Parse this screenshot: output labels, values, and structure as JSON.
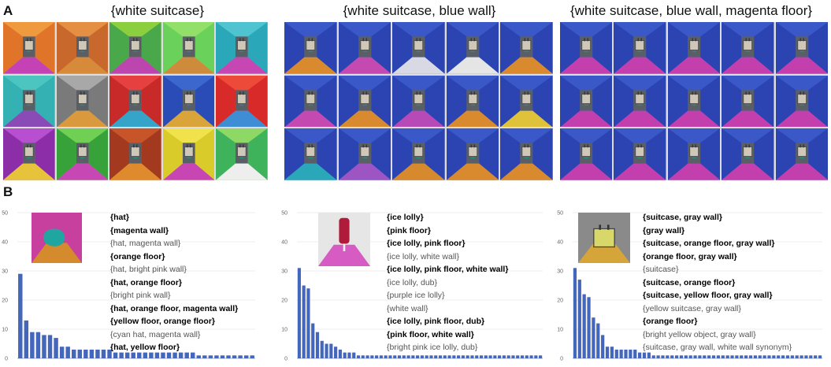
{
  "section_labels": {
    "a": "A",
    "b": "B"
  },
  "panel_a": {
    "groups": [
      {
        "title": "{white suitcase}",
        "rows": 3,
        "cols": 5,
        "tiles": [
          {
            "wall": "#e0752a",
            "wall2": "#f09a40",
            "floor": "#c442b6"
          },
          {
            "wall": "#c9682d",
            "wall2": "#e58f42",
            "floor": "#d78a3a"
          },
          {
            "wall": "#48a84a",
            "wall2": "#8ccf3e",
            "floor": "#bd45b0"
          },
          {
            "wall": "#6ad25b",
            "wall2": "#92e06a",
            "floor": "#cf8b3c"
          },
          {
            "wall": "#2aa7b8",
            "wall2": "#4fc4d0",
            "floor": "#c647b4"
          },
          {
            "wall": "#33b1b3",
            "wall2": "#4cc5c0",
            "floor": "#8b4bb6"
          },
          {
            "wall": "#7a7a7a",
            "wall2": "#a8a8a8",
            "floor": "#d9993c"
          },
          {
            "wall": "#c82a2a",
            "wall2": "#e64040",
            "floor": "#36a4c9"
          },
          {
            "wall": "#2a4cb6",
            "wall2": "#3c67cc",
            "floor": "#d9a53a"
          },
          {
            "wall": "#d92a2a",
            "wall2": "#ee4a3a",
            "floor": "#3f8ed5"
          },
          {
            "wall": "#8b2ea8",
            "wall2": "#b84ed0",
            "floor": "#e7c23b"
          },
          {
            "wall": "#38a23a",
            "wall2": "#6fd053",
            "floor": "#c747b4"
          },
          {
            "wall": "#a3391f",
            "wall2": "#c8552a",
            "floor": "#e08a2e"
          },
          {
            "wall": "#d9cc2a",
            "wall2": "#f0e24a",
            "floor": "#c846b3"
          },
          {
            "wall": "#3fb35c",
            "wall2": "#8ed966",
            "floor": "#eeeeee"
          }
        ]
      },
      {
        "title": "{white suitcase, blue  wall}",
        "rows": 3,
        "cols": 5,
        "tiles": [
          {
            "wall": "#2b44b2",
            "wall2": "#3a58c8",
            "floor": "#d98a2e"
          },
          {
            "wall": "#2b44b2",
            "wall2": "#3a58c8",
            "floor": "#c44ab2"
          },
          {
            "wall": "#2b44b2",
            "wall2": "#3a58c8",
            "floor": "#d9d9e6"
          },
          {
            "wall": "#2b44b2",
            "wall2": "#3a58c8",
            "floor": "#e5e5e5"
          },
          {
            "wall": "#2b44b2",
            "wall2": "#3a58c8",
            "floor": "#d98a2e"
          },
          {
            "wall": "#2b44b2",
            "wall2": "#3a58c8",
            "floor": "#c44ab2"
          },
          {
            "wall": "#2b44b2",
            "wall2": "#3a58c8",
            "floor": "#d98a2e"
          },
          {
            "wall": "#2b44b2",
            "wall2": "#3a58c8",
            "floor": "#b84ab8"
          },
          {
            "wall": "#2b44b2",
            "wall2": "#3a58c8",
            "floor": "#d98a2e"
          },
          {
            "wall": "#2b44b2",
            "wall2": "#3a58c8",
            "floor": "#e0c23a"
          },
          {
            "wall": "#2b44b2",
            "wall2": "#3a58c8",
            "floor": "#2aa7b8"
          },
          {
            "wall": "#2b44b2",
            "wall2": "#3a58c8",
            "floor": "#9c55c2"
          },
          {
            "wall": "#2b44b2",
            "wall2": "#3a58c8",
            "floor": "#d7892d"
          },
          {
            "wall": "#2b44b2",
            "wall2": "#3a58c8",
            "floor": "#d98a2e"
          },
          {
            "wall": "#2b44b2",
            "wall2": "#3a58c8",
            "floor": "#d98a2e"
          }
        ]
      },
      {
        "title": "{white suitcase, blue  wall, magenta  floor}",
        "rows": 3,
        "cols": 5,
        "tiles": [
          {
            "wall": "#2b44b2",
            "wall2": "#3a58c8",
            "floor": "#c43fae"
          },
          {
            "wall": "#2b44b2",
            "wall2": "#3a58c8",
            "floor": "#c43fae"
          },
          {
            "wall": "#2b44b2",
            "wall2": "#3a58c8",
            "floor": "#c43fae"
          },
          {
            "wall": "#2b44b2",
            "wall2": "#3a58c8",
            "floor": "#c43fae"
          },
          {
            "wall": "#2b44b2",
            "wall2": "#3a58c8",
            "floor": "#c43fae"
          },
          {
            "wall": "#2b44b2",
            "wall2": "#3a58c8",
            "floor": "#c43fae"
          },
          {
            "wall": "#2b44b2",
            "wall2": "#3a58c8",
            "floor": "#c43fae"
          },
          {
            "wall": "#2b44b2",
            "wall2": "#3a58c8",
            "floor": "#c43fae"
          },
          {
            "wall": "#2b44b2",
            "wall2": "#3a58c8",
            "floor": "#c43fae"
          },
          {
            "wall": "#2b44b2",
            "wall2": "#3a58c8",
            "floor": "#c43fae"
          },
          {
            "wall": "#2b44b2",
            "wall2": "#3a58c8",
            "floor": "#c43fae"
          },
          {
            "wall": "#2b44b2",
            "wall2": "#3a58c8",
            "floor": "#c43fae"
          },
          {
            "wall": "#2b44b2",
            "wall2": "#3a58c8",
            "floor": "#c43fae"
          },
          {
            "wall": "#2b44b2",
            "wall2": "#3a58c8",
            "floor": "#c43fae"
          },
          {
            "wall": "#2b44b2",
            "wall2": "#3a58c8",
            "floor": "#c43fae"
          }
        ]
      }
    ]
  },
  "panel_b": {
    "bar_color": "#4466bb",
    "hypotheses": [
      [
        {
          "text": "{hat}",
          "bold": true
        },
        {
          "text": "{magenta  wall}",
          "bold": true
        },
        {
          "text": "{hat, magenta  wall}",
          "bold": false
        },
        {
          "text": "{orange  floor}",
          "bold": true
        },
        {
          "text": "{hat, bright pink wall}",
          "bold": false
        },
        {
          "text": "{hat, orange  floor}",
          "bold": true
        },
        {
          "text": "{bright pink wall}",
          "bold": false
        },
        {
          "text": "{hat, orange  floor, magenta  wall}",
          "bold": true
        },
        {
          "text": "{yellow  floor, orange  floor}",
          "bold": true
        },
        {
          "text": "{cyan hat, magenta  wall}",
          "bold": false
        },
        {
          "text": "{hat, yellow  floor}",
          "bold": true
        }
      ],
      [
        {
          "text": "{ice lolly}",
          "bold": true
        },
        {
          "text": "{pink  floor}",
          "bold": true
        },
        {
          "text": "{ice  lolly, pink  floor}",
          "bold": true
        },
        {
          "text": "{ice lolly, white  wall}",
          "bold": false
        },
        {
          "text": "{ice  lolly, pink  floor, white  wall}",
          "bold": true
        },
        {
          "text": "{ice lolly, dub}",
          "bold": false
        },
        {
          "text": "{purple ice lolly}",
          "bold": false
        },
        {
          "text": "{white  wall}",
          "bold": false
        },
        {
          "text": "{ice  lolly, pink  floor, dub}",
          "bold": true
        },
        {
          "text": "{pink  floor, white  wall}",
          "bold": true
        },
        {
          "text": "{bright pink ice lolly, dub}",
          "bold": false
        }
      ],
      [
        {
          "text": "{suitcase, gray  wall}",
          "bold": true
        },
        {
          "text": "{gray  wall}",
          "bold": true
        },
        {
          "text": "{suitcase, orange  floor, gray  wall}",
          "bold": true
        },
        {
          "text": "{orange  floor, gray  wall}",
          "bold": true
        },
        {
          "text": "{suitcase}",
          "bold": false
        },
        {
          "text": "{suitcase, orange  floor}",
          "bold": true
        },
        {
          "text": "{suitcase, yellow  floor, gray  wall}",
          "bold": true
        },
        {
          "text": "{yellow suitcase, gray  wall}",
          "bold": false
        },
        {
          "text": "{orange  floor}",
          "bold": true
        },
        {
          "text": "{bright  yellow object, gray  wall}",
          "bold": false
        },
        {
          "text": "{suitcase, gray  wall, white  wall synonym}",
          "bold": false
        }
      ]
    ],
    "thumbnails": [
      {
        "wall": "#c7409d",
        "floor": "#d58a2e",
        "object": "#1fa6a0",
        "kind": "hat"
      },
      {
        "wall": "#e6e6e6",
        "floor": "#d65cc4",
        "object": "#b01b3c",
        "kind": "lolly"
      },
      {
        "wall": "#8a8a8a",
        "floor": "#d6a53a",
        "object": "#d8d86a",
        "kind": "suitcase"
      }
    ]
  },
  "chart_data": [
    {
      "type": "bar",
      "ylim": [
        0,
        50
      ],
      "yticks": [
        0,
        10,
        20,
        30,
        40,
        50
      ],
      "values": [
        29,
        13,
        9,
        9,
        8,
        8,
        7,
        4,
        4,
        3,
        3,
        3,
        3,
        3,
        3,
        3,
        2,
        2,
        2,
        2,
        2,
        2,
        2,
        2,
        2,
        2,
        2,
        2,
        2,
        2,
        1,
        1,
        1,
        1,
        1,
        1,
        1,
        1,
        1,
        1
      ]
    },
    {
      "type": "bar",
      "ylim": [
        0,
        50
      ],
      "yticks": [
        0,
        10,
        20,
        30,
        40,
        50
      ],
      "values": [
        31,
        25,
        24,
        12,
        9,
        6,
        5,
        5,
        4,
        3,
        2,
        2,
        2,
        1,
        1,
        1,
        1,
        1,
        1,
        1,
        1,
        1,
        1,
        1,
        1,
        1,
        1,
        1,
        1,
        1,
        1,
        1,
        1,
        1,
        1,
        1,
        1,
        1,
        1,
        1,
        1,
        1,
        1,
        1,
        1,
        1,
        1,
        1,
        1,
        1,
        1,
        1,
        1,
        1
      ]
    },
    {
      "type": "bar",
      "ylim": [
        0,
        50
      ],
      "yticks": [
        0,
        10,
        20,
        30,
        40,
        50
      ],
      "values": [
        31,
        27,
        22,
        21,
        14,
        12,
        8,
        4,
        4,
        3,
        3,
        3,
        3,
        3,
        2,
        2,
        2,
        1,
        1,
        1,
        1,
        1,
        1,
        1,
        1,
        1,
        1,
        1,
        1,
        1,
        1,
        1,
        1,
        1,
        1,
        1,
        1,
        1,
        1,
        1,
        1,
        1,
        1,
        1,
        1,
        1,
        1,
        1,
        1,
        1,
        1,
        1,
        1,
        1
      ]
    }
  ]
}
